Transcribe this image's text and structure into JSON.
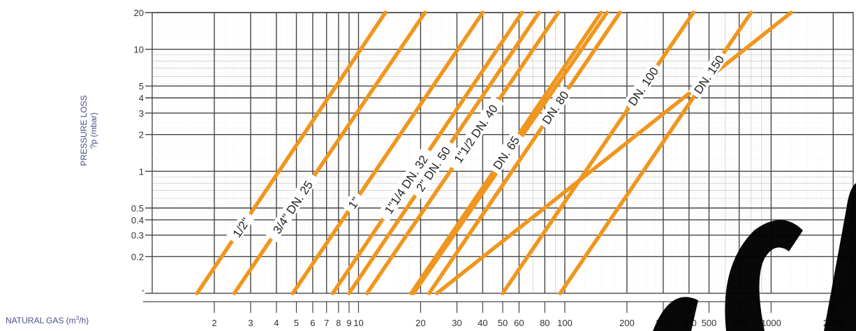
{
  "chart_data": {
    "type": "line",
    "scale": {
      "x": "log",
      "y": "log"
    },
    "ylabel": "PRESSURE LOSS",
    "ylabel_sub": "?p (mbar)",
    "xlabel": "NATURAL GAS (m",
    "xlabel_sup": "3",
    "xlabel_end": "/h)",
    "x_ticks": [
      {
        "value": 2,
        "label": "2"
      },
      {
        "value": 3,
        "label": "3"
      },
      {
        "value": 4,
        "label": "4"
      },
      {
        "value": 5,
        "label": "5"
      },
      {
        "value": 6,
        "label": "6"
      },
      {
        "value": 7,
        "label": "7"
      },
      {
        "value": 8,
        "label": "8"
      },
      {
        "value": 9,
        "label": "9"
      },
      {
        "value": 10,
        "label": "10"
      },
      {
        "value": 20,
        "label": "20"
      },
      {
        "value": 30,
        "label": "30"
      },
      {
        "value": 40,
        "label": "40"
      },
      {
        "value": 50,
        "label": "50"
      },
      {
        "value": 60,
        "label": "60"
      },
      {
        "value": 80,
        "label": "80"
      },
      {
        "value": 100,
        "label": "100"
      },
      {
        "value": 200,
        "label": "200"
      },
      {
        "value": 300,
        "label": "300"
      },
      {
        "value": 400,
        "label": "400"
      },
      {
        "value": 500,
        "label": "500"
      },
      {
        "value": 700,
        "label": "700"
      },
      {
        "value": 1000,
        "label": "1000"
      },
      {
        "value": 2000,
        "label": "2000"
      }
    ],
    "y_ticks": [
      {
        "value": 0.2,
        "label": "0.2"
      },
      {
        "value": 0.3,
        "label": "0.3"
      },
      {
        "value": 0.4,
        "label": "0.4"
      },
      {
        "value": 0.5,
        "label": "0.5"
      },
      {
        "value": 1,
        "label": "1"
      },
      {
        "value": 2,
        "label": "2"
      },
      {
        "value": 3,
        "label": "3"
      },
      {
        "value": 4,
        "label": "4"
      },
      {
        "value": 5,
        "label": "5"
      },
      {
        "value": 10,
        "label": "10"
      },
      {
        "value": 20,
        "label": "20"
      }
    ],
    "y_bottom_label": "'",
    "series": [
      {
        "name": "1/2\"",
        "points": [
          [
            1.65,
            0.1
          ],
          [
            13.5,
            20
          ]
        ],
        "label_at": 2.7
      },
      {
        "name": "3/4\" DN. 25",
        "points": [
          [
            2.5,
            0.1
          ],
          [
            21,
            20
          ]
        ],
        "label_at": 4.8
      },
      {
        "name": "1\"",
        "points": [
          [
            4.8,
            0.1
          ],
          [
            40,
            20
          ]
        ],
        "label_at": 9.5
      },
      {
        "name": "1\"1/4 DN. 32",
        "points": [
          [
            7.5,
            0.1
          ],
          [
            62,
            20
          ]
        ],
        "label_at": 17
      },
      {
        "name": "1\"1/2 DN. 40",
        "points": [
          [
            11,
            0.1
          ],
          [
            93,
            20
          ]
        ],
        "label_at": 37
      },
      {
        "name": "2\" DN. 50",
        "points": [
          [
            9,
            0.1
          ],
          [
            75,
            20
          ]
        ],
        "label_at": 23
      },
      {
        "name": "DN. 65",
        "points": [
          [
            18,
            0.1
          ],
          [
            150,
            20
          ]
        ],
        "label_at": 52
      },
      {
        "name": "DN. 80",
        "points": [
          [
            22,
            0.1
          ],
          [
            185,
            20
          ]
        ],
        "label_at": 90
      },
      {
        "name": "DN. 100",
        "points": [
          [
            50,
            0.1
          ],
          [
            420,
            20
          ]
        ],
        "label_at": 240
      },
      {
        "name": "DN. 150",
        "points": [
          [
            95,
            0.1
          ],
          [
            800,
            20
          ]
        ],
        "label_at": 500
      },
      {
        "name": "",
        "points": [
          [
            18.5,
            0.1
          ],
          [
            160,
            20
          ]
        ]
      },
      {
        "name": "",
        "points": [
          [
            24,
            0.1
          ],
          [
            1250,
            20
          ]
        ]
      }
    ],
    "grid": true,
    "legend": "none",
    "line_color": "#f0961e",
    "watermark": "SUI"
  }
}
